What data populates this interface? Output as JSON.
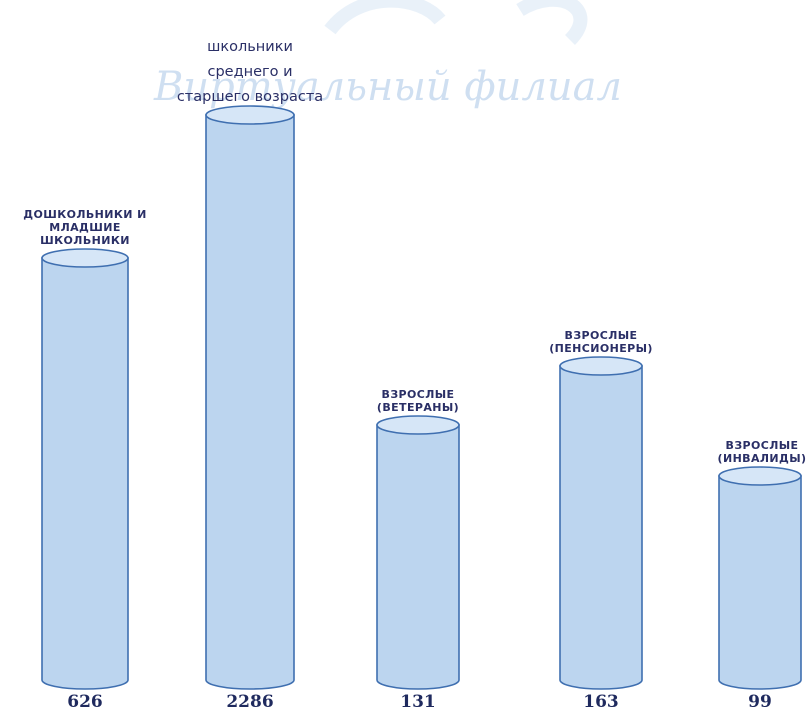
{
  "watermark": "Виртуальный филиал",
  "chart_data": {
    "type": "bar",
    "title": "",
    "xlabel": "",
    "ylabel": "",
    "categories": [
      "ДОШКОЛЬНИКИ И МЛАДШИЕ ШКОЛЬНИКИ",
      "школьники среднего и старшего возраста",
      "ВЗРОСЛЫЕ (ВЕТЕРАНЫ)",
      "ВЗРОСЛЫЕ (ПЕНСИОНЕРЫ)",
      "ВЗРОСЛЫЕ (ИНВАЛИДЫ)"
    ],
    "category_label_lines": [
      [
        "ДОШКОЛЬНИКИ И",
        "МЛАДШИЕ",
        "ШКОЛЬНИКИ"
      ],
      [
        "школьники",
        "среднего и",
        "старшего возраста"
      ],
      [
        "ВЗРОСЛЫЕ",
        "(ВЕТЕРАНЫ)"
      ],
      [
        "ВЗРОСЛЫЕ",
        "(ПЕНСИОНЕРЫ)"
      ],
      [
        "ВЗРОСЛЫЕ",
        "(ИНВАЛИДЫ)"
      ]
    ],
    "values": [
      626,
      2286,
      131,
      163,
      99
    ],
    "value_labels": [
      "626",
      "2286",
      "131",
      "163",
      "99"
    ],
    "bar_style": "3d-cylinder",
    "colors": {
      "fill": "#bcd5ef",
      "top": "#d6e6f7",
      "stroke": "#3f6fb0",
      "text": "#2a2f66"
    },
    "grid": false,
    "legend": "none"
  }
}
